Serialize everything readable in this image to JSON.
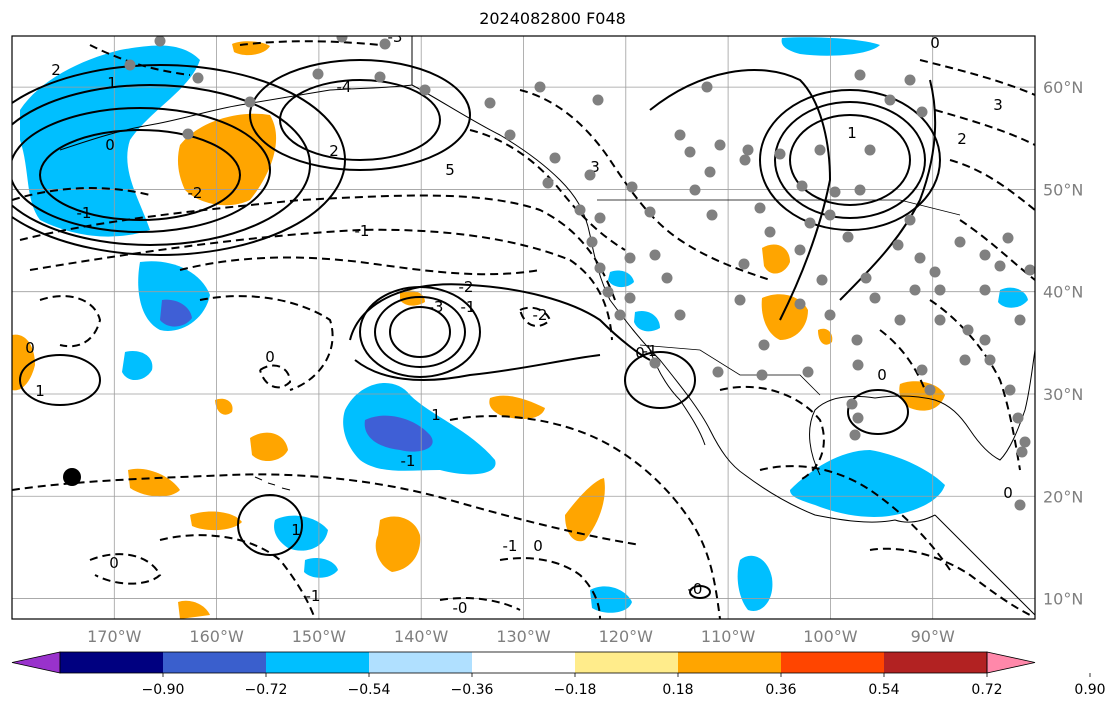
{
  "title": "2024082800 F048",
  "map": {
    "projection": "equirectangular",
    "lon_range": [
      -180,
      -80
    ],
    "lat_range": [
      8,
      65
    ],
    "gridlines": true,
    "lon_ticks": [
      "170°W",
      "160°W",
      "150°W",
      "140°W",
      "130°W",
      "120°W",
      "110°W",
      "100°W",
      "90°W"
    ],
    "lat_ticks": [
      "10°N",
      "20°N",
      "30°N",
      "40°N",
      "50°N",
      "60°N"
    ],
    "colors": {
      "positive_light": "#ffa500",
      "negative_light": "#00bfff",
      "negative_mid": "#3f5fd6",
      "contour": "#000000",
      "station": "#808080",
      "grid": "#9e9e9e"
    },
    "contour_labels": [
      "2",
      "1",
      "0",
      "-1",
      "-2",
      "-3",
      "-4",
      "2",
      "1",
      "0",
      "3",
      "2",
      "5",
      "3",
      "-1",
      "-2",
      "-3",
      "-1",
      "-2",
      "0",
      "0",
      "0",
      "1",
      "-1",
      "1",
      "0",
      "-1",
      "0",
      "-0",
      "0",
      "1",
      "0",
      "-1",
      "-1",
      "-0"
    ]
  },
  "colorbar": {
    "colors": [
      "#9932cc",
      "#000080",
      "#3a5fcd",
      "#00bfff",
      "#b0e0ff",
      "#ffffff",
      "#ffec8b",
      "#ffa500",
      "#ff4500",
      "#b22222",
      "#ff88aa"
    ],
    "labels": [
      "−0.90",
      "−0.72",
      "−0.54",
      "−0.36",
      "−0.18",
      "0.18",
      "0.36",
      "0.54",
      "0.72",
      "0.90"
    ]
  }
}
